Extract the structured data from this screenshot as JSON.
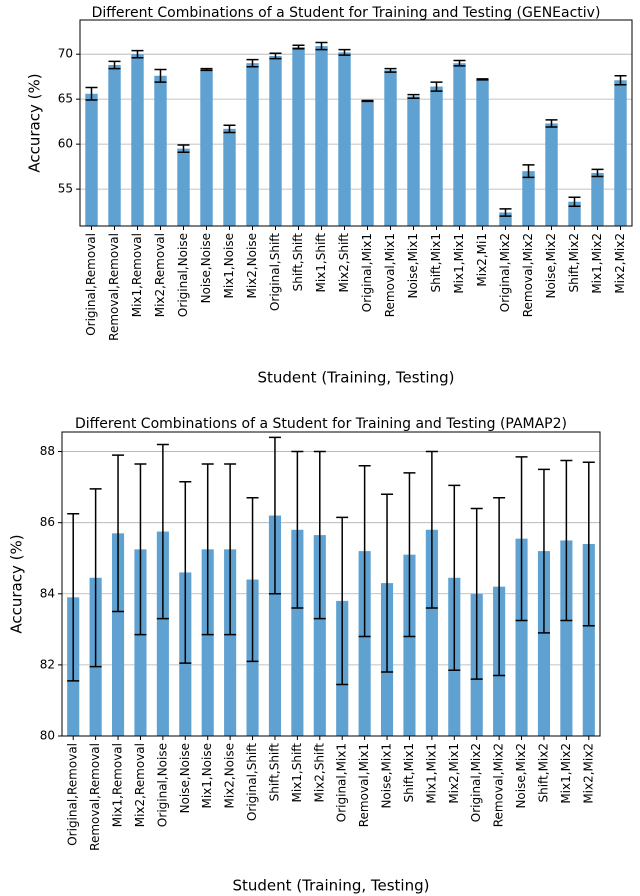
{
  "chart_data": [
    {
      "type": "bar",
      "title": "Different Combinations of a Student for Training and Testing (GENEactiv)",
      "x_label": "Student (Training, Testing)",
      "y_label": "Accuracy (%)",
      "categories": [
        "Original,Removal",
        "Removal,Removal",
        "Mix1,Removal",
        "Mix2,Removal",
        "Original,Noise",
        "Noise,Noise",
        "Mix1,Noise",
        "Mix2,Noise",
        "Original,Shift",
        "Shift,Shift",
        "Mix1,Shift",
        "Mix2,Shift",
        "Original,Mix1",
        "Removal,Mix1",
        "Noise,Mix1",
        "Shift,Mix1",
        "Mix1,Mix1",
        "Mix2,Mi1",
        "Original,Mix2",
        "Removal,Mix2",
        "Noise,Mix2",
        "Shift,Mix2",
        "Mix1,Mix2",
        "Mix2,Mix2"
      ],
      "values": [
        65.6,
        68.8,
        70.0,
        67.6,
        59.5,
        68.3,
        61.7,
        69.0,
        69.8,
        70.8,
        70.9,
        70.2,
        64.8,
        68.2,
        65.3,
        66.4,
        69.0,
        67.2,
        52.4,
        57.0,
        62.3,
        53.6,
        56.8,
        67.1
      ],
      "errors": [
        0.7,
        0.4,
        0.4,
        0.7,
        0.4,
        0.1,
        0.4,
        0.4,
        0.3,
        0.2,
        0.4,
        0.3,
        0.05,
        0.2,
        0.2,
        0.5,
        0.3,
        0.05,
        0.4,
        0.7,
        0.4,
        0.5,
        0.4,
        0.5
      ],
      "color": "#5fa1d0",
      "ylim": [
        50.9,
        73.8
      ],
      "yticks": [
        55,
        60,
        65,
        70
      ],
      "grid": true
    },
    {
      "type": "bar",
      "title": "Different Combinations of a Student for Training and Testing (PAMAP2)",
      "x_label": "Student (Training, Testing)",
      "y_label": "Accuracy (%)",
      "categories": [
        "Original,Removal",
        "Removal,Removal",
        "Mix1,Removal",
        "Mix2,Removal",
        "Original,Noise",
        "Noise,Noise",
        "Mix1,Noise",
        "Mix2,Noise",
        "Original,Shift",
        "Shift,Shift",
        "Mix1,Shift",
        "Mix2,Shift",
        "Original,Mix1",
        "Removal,Mix1",
        "Noise,Mix1",
        "Shift,Mix1",
        "Mix1,Mix1",
        "Mix2,Mix1",
        "Original,Mix2",
        "Removal,Mix2",
        "Noise,Mix2",
        "Shift,Mix2",
        "Mix1,Mix2",
        "Mix2,Mix2"
      ],
      "values": [
        83.9,
        84.45,
        85.7,
        85.25,
        85.75,
        84.6,
        85.25,
        85.25,
        84.4,
        86.2,
        85.8,
        85.65,
        83.8,
        85.2,
        84.3,
        85.1,
        85.8,
        84.45,
        84.0,
        84.2,
        85.55,
        85.2,
        85.5,
        85.4
      ],
      "errors": [
        2.35,
        2.5,
        2.2,
        2.4,
        2.45,
        2.55,
        2.4,
        2.4,
        2.3,
        2.2,
        2.2,
        2.35,
        2.35,
        2.4,
        2.5,
        2.3,
        2.2,
        2.6,
        2.4,
        2.5,
        2.3,
        2.3,
        2.25,
        2.3
      ],
      "color": "#5fa1d0",
      "ylim": [
        80,
        88.55
      ],
      "yticks": [
        80,
        82,
        84,
        86,
        88
      ],
      "grid": true
    }
  ]
}
